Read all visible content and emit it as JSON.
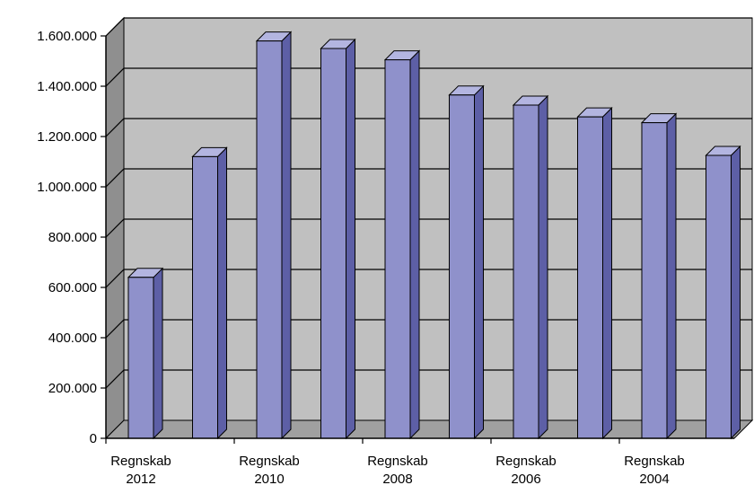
{
  "chart_data": {
    "type": "bar",
    "three_d": true,
    "categories": [
      "Regnskab 2012",
      "",
      "Regnskab 2010",
      "",
      "Regnskab 2008",
      "",
      "Regnskab 2006",
      "",
      "Regnskab 2004",
      ""
    ],
    "category_label_lines": [
      [
        "Regnskab",
        "2012"
      ],
      [],
      [
        "Regnskab",
        "2010"
      ],
      [],
      [
        "Regnskab",
        "2008"
      ],
      [],
      [
        "Regnskab",
        "2006"
      ],
      [],
      [
        "Regnskab",
        "2004"
      ],
      []
    ],
    "series": [
      {
        "values": [
          640000,
          1120000,
          1580000,
          1550000,
          1505000,
          1365000,
          1325000,
          1278000,
          1255000,
          1125000
        ]
      }
    ],
    "ylim": [
      0,
      1600000
    ],
    "yticks": [
      0,
      200000,
      400000,
      600000,
      800000,
      1000000,
      1200000,
      1400000,
      1600000
    ],
    "ytick_labels": [
      "0",
      "200.000",
      "400.000",
      "600.000",
      "800.000",
      "1.000.000",
      "1.200.000",
      "1.400.000",
      "1.600.000"
    ],
    "title": "",
    "xlabel": "",
    "ylabel": "",
    "grid": true,
    "legend": "none",
    "colors": {
      "bar_front": "#8f91cb",
      "bar_side": "#5d5fa6",
      "bar_top": "#b3b5e0",
      "back_wall": "#c0c0c0",
      "side_wall": "#8f8f8f",
      "floor": "#a0a0a0",
      "gridline": "#000000"
    }
  }
}
